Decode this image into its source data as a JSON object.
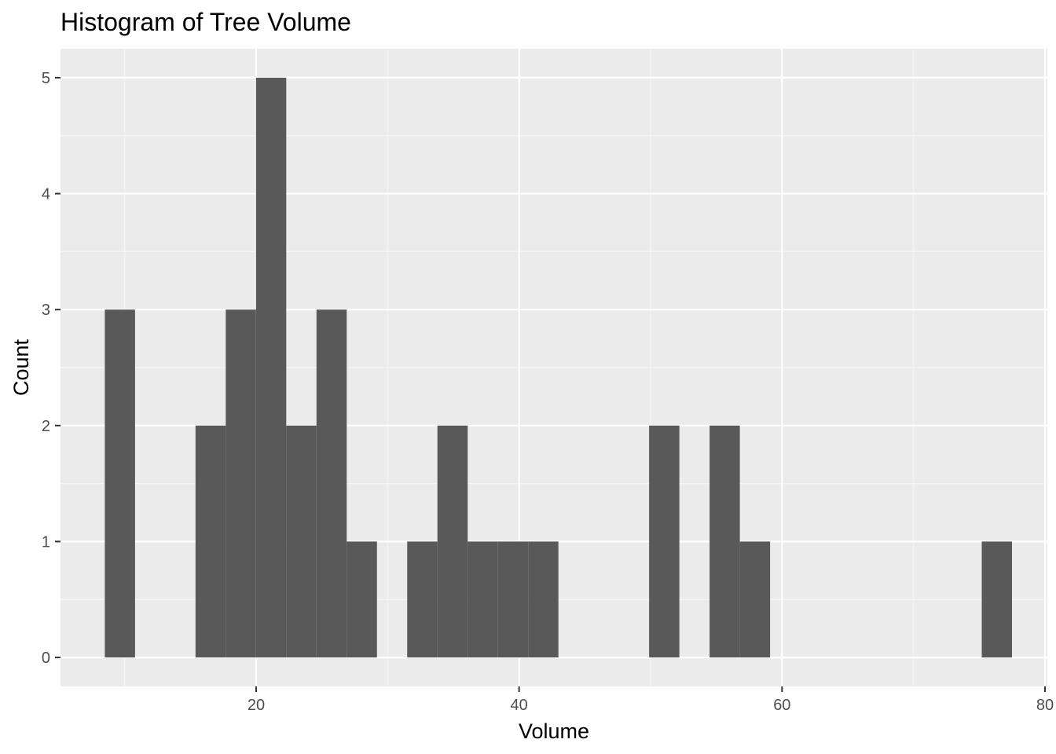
{
  "chart_data": {
    "type": "bar",
    "title": "Histogram of Tree Volume",
    "xlabel": "Volume",
    "ylabel": "Count",
    "xlim": [
      5.12,
      80.18
    ],
    "ylim": [
      -0.25,
      5.25
    ],
    "x_ticks": [
      20,
      40,
      60,
      80
    ],
    "x_minor_ticks": [
      10,
      30,
      50,
      70
    ],
    "y_ticks": [
      0,
      1,
      2,
      3,
      4,
      5
    ],
    "y_minor_ticks": [
      0.5,
      1.5,
      2.5,
      3.5,
      4.5
    ],
    "bins": [
      {
        "x0": 8.49,
        "x1": 10.79,
        "count": 3
      },
      {
        "x0": 10.79,
        "x1": 13.09,
        "count": 0
      },
      {
        "x0": 13.09,
        "x1": 15.39,
        "count": 0
      },
      {
        "x0": 15.39,
        "x1": 17.69,
        "count": 2
      },
      {
        "x0": 17.69,
        "x1": 19.99,
        "count": 3
      },
      {
        "x0": 19.99,
        "x1": 22.29,
        "count": 5
      },
      {
        "x0": 22.29,
        "x1": 24.59,
        "count": 2
      },
      {
        "x0": 24.59,
        "x1": 26.89,
        "count": 3
      },
      {
        "x0": 26.89,
        "x1": 29.19,
        "count": 1
      },
      {
        "x0": 29.19,
        "x1": 31.49,
        "count": 0
      },
      {
        "x0": 31.49,
        "x1": 33.79,
        "count": 1
      },
      {
        "x0": 33.79,
        "x1": 36.09,
        "count": 2
      },
      {
        "x0": 36.09,
        "x1": 38.39,
        "count": 1
      },
      {
        "x0": 38.39,
        "x1": 40.69,
        "count": 1
      },
      {
        "x0": 40.69,
        "x1": 42.99,
        "count": 1
      },
      {
        "x0": 42.99,
        "x1": 45.29,
        "count": 0
      },
      {
        "x0": 45.29,
        "x1": 47.59,
        "count": 0
      },
      {
        "x0": 47.59,
        "x1": 49.89,
        "count": 0
      },
      {
        "x0": 49.89,
        "x1": 52.19,
        "count": 2
      },
      {
        "x0": 52.19,
        "x1": 54.49,
        "count": 0
      },
      {
        "x0": 54.49,
        "x1": 56.79,
        "count": 2
      },
      {
        "x0": 56.79,
        "x1": 59.09,
        "count": 1
      },
      {
        "x0": 59.09,
        "x1": 61.39,
        "count": 0
      },
      {
        "x0": 61.39,
        "x1": 63.69,
        "count": 0
      },
      {
        "x0": 63.69,
        "x1": 65.99,
        "count": 0
      },
      {
        "x0": 65.99,
        "x1": 68.29,
        "count": 0
      },
      {
        "x0": 68.29,
        "x1": 70.59,
        "count": 0
      },
      {
        "x0": 70.59,
        "x1": 72.89,
        "count": 0
      },
      {
        "x0": 72.89,
        "x1": 75.19,
        "count": 0
      },
      {
        "x0": 75.19,
        "x1": 77.49,
        "count": 1
      }
    ],
    "grid": true,
    "colors": {
      "panel_background": "#ebebeb",
      "grid_major": "#ffffff",
      "grid_minor": "#f5f5f5",
      "bar_fill": "#595959",
      "tick_color": "#333333",
      "tick_label_color": "#4d4d4d"
    }
  }
}
